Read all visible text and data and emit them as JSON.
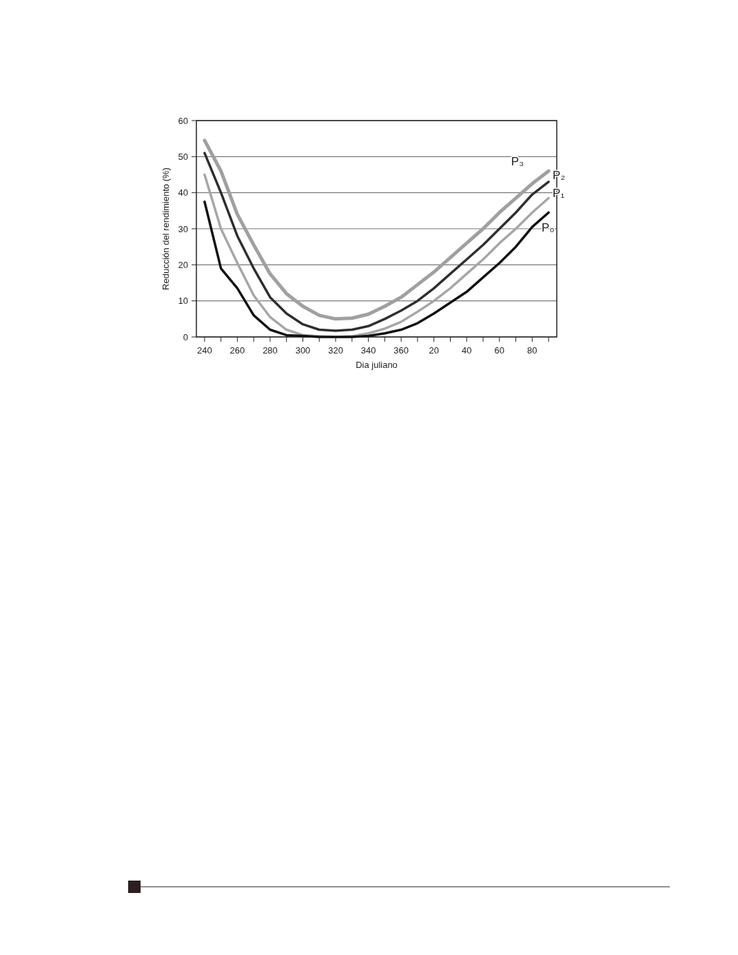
{
  "chart_data": {
    "type": "line",
    "xlabel": "Dia juliano",
    "ylabel": "Reducción del rendimiento (%)",
    "ylim": [
      0,
      60
    ],
    "categories": [
      "240",
      null,
      "260",
      null,
      "280",
      null,
      "300",
      null,
      "320",
      null,
      "340",
      null,
      "360",
      null,
      "20",
      null,
      "40",
      null,
      "60",
      null,
      "80",
      null
    ],
    "yticks": [
      0,
      10,
      20,
      30,
      40,
      50,
      60
    ],
    "grid": "y",
    "marker": "none",
    "line_style": "solid",
    "series": [
      {
        "name": "P₃",
        "color": "#a0a0a0",
        "values": [
          54.5,
          46,
          34,
          25.5,
          17.5,
          12,
          8.5,
          6,
          5,
          5.2,
          6.3,
          8.5,
          11,
          14.5,
          18,
          22,
          26,
          30,
          34.5,
          38.5,
          42.5,
          46
        ]
      },
      {
        "name": "P₂",
        "color": "#2e2e2e",
        "values": [
          51,
          40,
          28,
          19,
          11,
          6.5,
          3.5,
          2,
          1.7,
          2,
          3,
          5,
          7.3,
          10,
          13.5,
          17.5,
          21.5,
          25.5,
          30,
          34.5,
          39.5,
          43
        ]
      },
      {
        "name": "P₁",
        "color": "#a6a6a6",
        "values": [
          45,
          30,
          20.5,
          11.5,
          5.5,
          2,
          0.5,
          0.2,
          0,
          0.2,
          1,
          2.3,
          4.2,
          7,
          10,
          13.5,
          17.5,
          21.5,
          26,
          30,
          34.5,
          38.5
        ]
      },
      {
        "name": "P₀",
        "color": "#111111",
        "values": [
          37.5,
          19,
          13.5,
          6,
          2,
          0.5,
          0.3,
          0,
          0,
          0,
          0.3,
          1,
          2,
          3.8,
          6.5,
          9.5,
          12.5,
          16.5,
          20.5,
          25,
          30.5,
          34.5
        ]
      }
    ]
  }
}
